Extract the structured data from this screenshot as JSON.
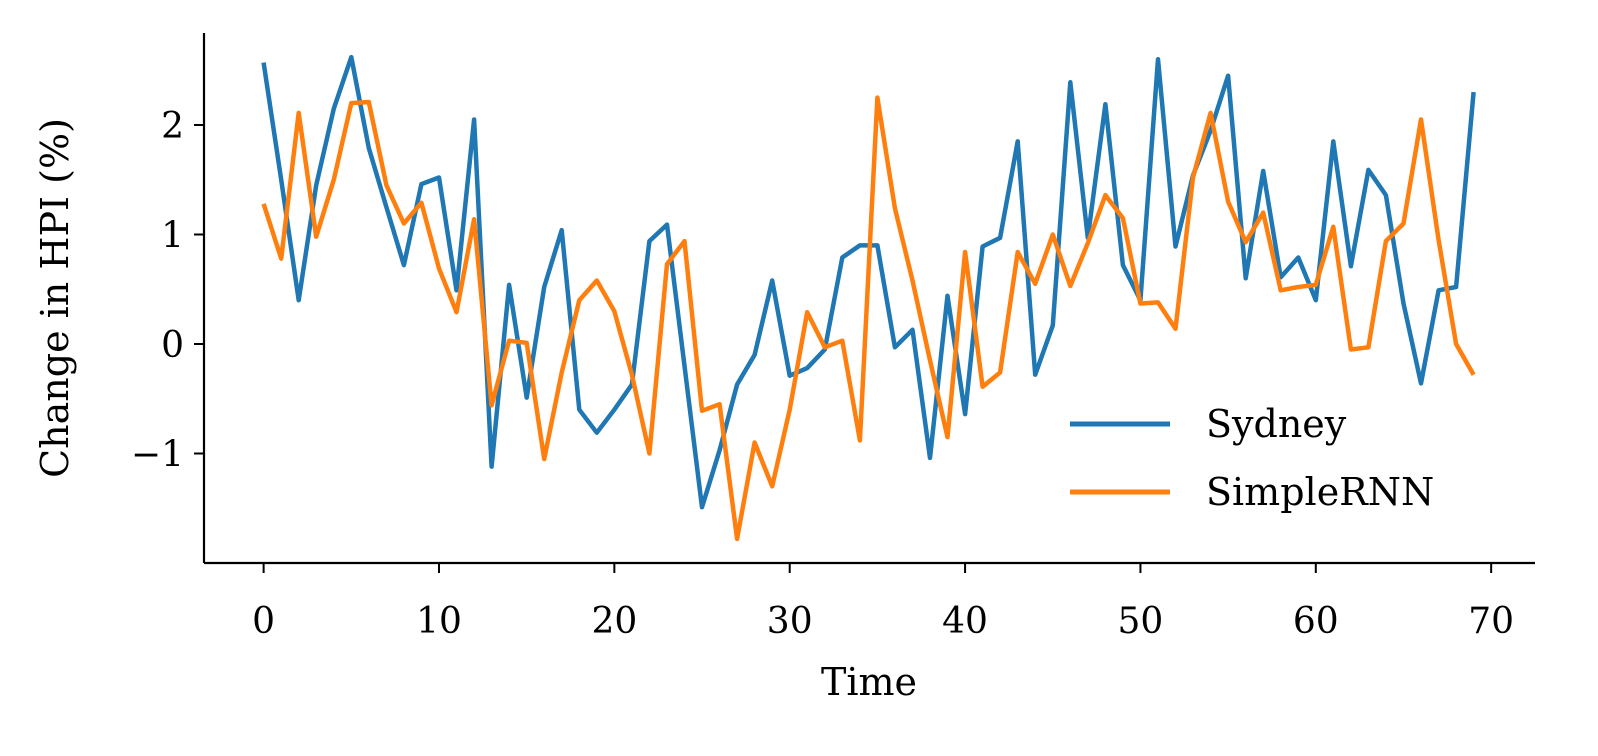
{
  "chart_data": {
    "type": "line",
    "title": "",
    "xlabel": "Time",
    "ylabel": "Change in HPI (%)",
    "xlim": [
      -3.4,
      72.5
    ],
    "ylim": [
      -2.0,
      2.84
    ],
    "xticks": [
      0,
      10,
      20,
      30,
      40,
      50,
      60,
      70
    ],
    "xtick_labels": [
      "0",
      "10",
      "20",
      "30",
      "40",
      "50",
      "60",
      "70"
    ],
    "yticks": [
      -1,
      0,
      1,
      2
    ],
    "ytick_labels": [
      "−1",
      "0",
      "1",
      "2"
    ],
    "grid": false,
    "legend_position": "lower-right",
    "series": [
      {
        "name": "Sydney",
        "color": "#1f77b4",
        "values": [
          2.57,
          1.5,
          0.4,
          1.45,
          2.15,
          2.62,
          1.79,
          1.25,
          0.72,
          1.46,
          1.52,
          0.49,
          2.05,
          -1.12,
          0.54,
          -0.49,
          0.52,
          1.04,
          -0.6,
          -0.81,
          -0.6,
          -0.37,
          0.94,
          1.09,
          -0.2,
          -1.49,
          -0.97,
          -0.37,
          -0.1,
          0.58,
          -0.29,
          -0.22,
          -0.05,
          0.79,
          0.9,
          0.9,
          -0.03,
          0.13,
          -1.04,
          0.44,
          -0.64,
          0.89,
          0.97,
          1.85,
          -0.28,
          0.17,
          2.39,
          0.97,
          2.19,
          0.72,
          0.4,
          2.6,
          0.89,
          1.54,
          1.95,
          2.45,
          0.6,
          1.58,
          0.61,
          0.79,
          0.4,
          1.85,
          0.71,
          1.59,
          1.36,
          0.37,
          -0.36,
          0.49,
          0.52,
          2.3
        ]
      },
      {
        "name": "SimpleRNN",
        "color": "#ff7f0e",
        "values": [
          1.28,
          0.78,
          2.11,
          0.98,
          1.5,
          2.2,
          2.21,
          1.45,
          1.1,
          1.29,
          0.69,
          0.29,
          1.14,
          -0.56,
          0.03,
          0.01,
          -1.05,
          -0.26,
          0.4,
          0.58,
          0.3,
          -0.28,
          -1.0,
          0.73,
          0.94,
          -0.61,
          -0.55,
          -1.78,
          -0.9,
          -1.3,
          -0.6,
          0.29,
          -0.03,
          0.03,
          -0.88,
          2.25,
          1.24,
          0.58,
          -0.15,
          -0.85,
          0.84,
          -0.39,
          -0.26,
          0.84,
          0.55,
          1.0,
          0.53,
          0.92,
          1.36,
          1.15,
          0.37,
          0.38,
          0.14,
          1.52,
          2.11,
          1.3,
          0.93,
          1.2,
          0.49,
          0.52,
          0.54,
          1.07,
          -0.05,
          -0.03,
          0.94,
          1.1,
          2.05,
          0.95,
          0.0,
          -0.28
        ]
      }
    ]
  }
}
